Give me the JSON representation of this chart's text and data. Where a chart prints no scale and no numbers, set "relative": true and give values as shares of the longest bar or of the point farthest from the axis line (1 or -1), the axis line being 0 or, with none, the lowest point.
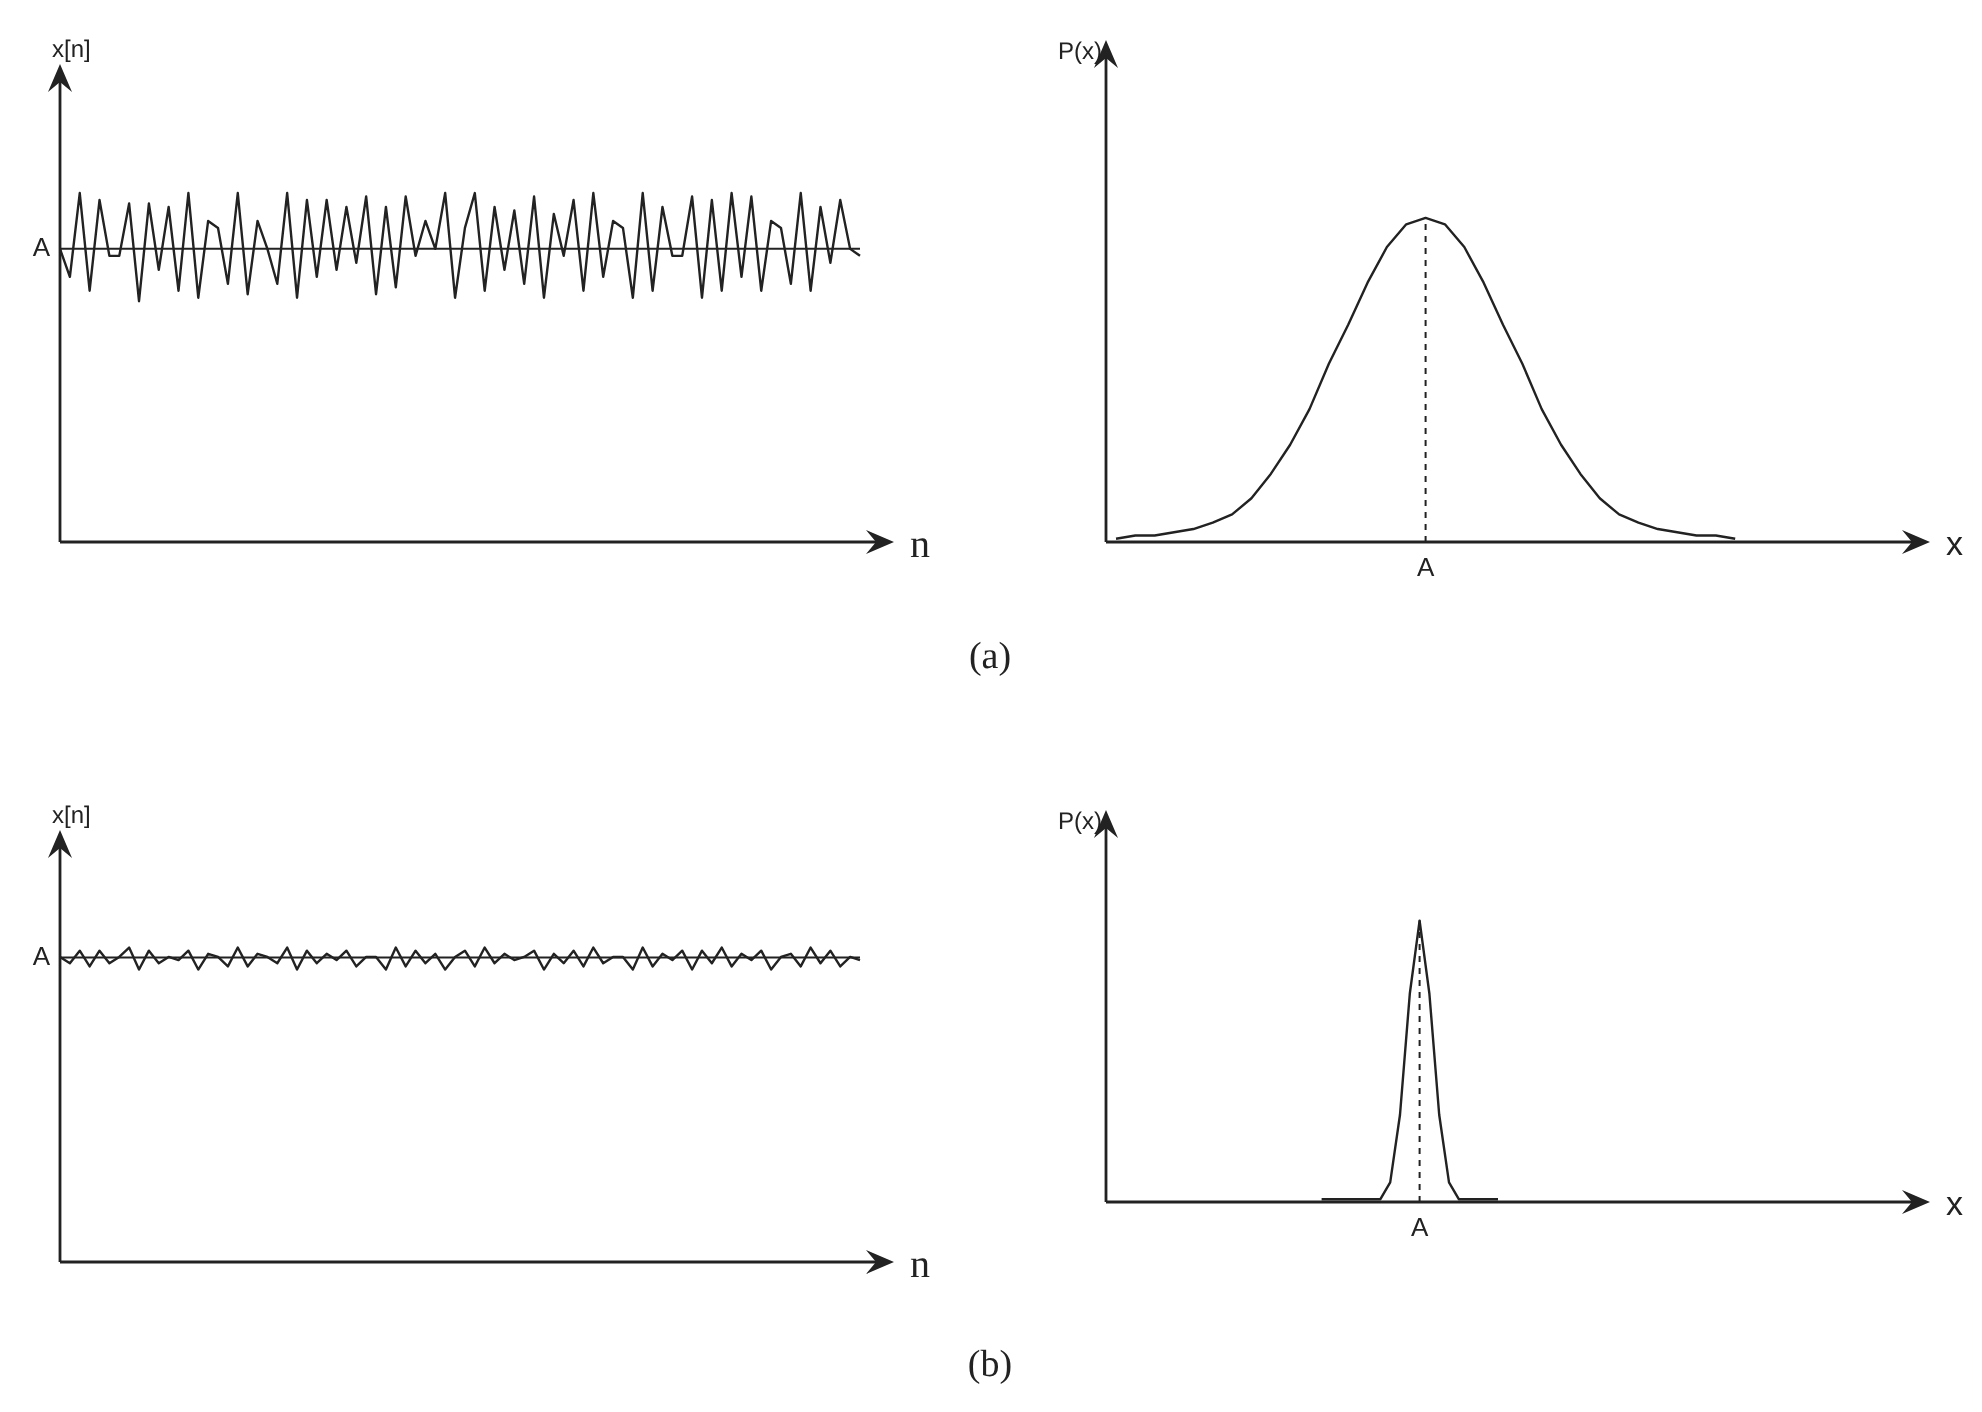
{
  "chart_data": [
    {
      "type": "line",
      "relative": true,
      "ylabel": "x[n]",
      "xlabel": "n",
      "marker": "none",
      "color": "#222222",
      "categories": [
        null,
        null,
        null,
        null,
        null,
        null,
        null,
        null,
        null,
        null,
        null,
        null,
        null,
        null,
        null,
        null,
        null,
        null,
        null,
        null,
        null,
        null,
        null,
        null,
        null,
        null,
        null,
        null,
        null,
        null,
        null,
        null,
        null,
        null,
        null,
        null,
        null,
        null,
        null,
        null,
        null,
        null,
        null,
        null,
        null,
        null,
        null,
        null,
        null,
        null,
        null,
        null,
        null,
        null,
        null,
        null,
        null,
        null,
        null,
        null,
        null,
        null,
        null,
        null,
        null,
        null,
        null,
        null,
        null,
        null,
        null,
        null,
        null,
        null,
        null,
        null,
        null,
        null,
        null,
        null,
        null,
        null
      ],
      "values": [
        0.84,
        0.76,
        1.0,
        0.72,
        0.98,
        0.82,
        0.82,
        0.97,
        0.69,
        0.97,
        0.78,
        0.96,
        0.72,
        1.0,
        0.7,
        0.92,
        0.9,
        0.74,
        1.0,
        0.71,
        0.92,
        0.84,
        0.74,
        1.0,
        0.7,
        0.98,
        0.76,
        0.98,
        0.78,
        0.96,
        0.8,
        0.99,
        0.71,
        0.96,
        0.73,
        0.99,
        0.82,
        0.92,
        0.84,
        1.0,
        0.7,
        0.9,
        1.0,
        0.72,
        0.96,
        0.78,
        0.95,
        0.74,
        0.99,
        0.7,
        0.94,
        0.82,
        0.98,
        0.72,
        1.0,
        0.76,
        0.92,
        0.9,
        0.7,
        1.0,
        0.72,
        0.96,
        0.82,
        0.82,
        0.99,
        0.7,
        0.98,
        0.72,
        1.0,
        0.76,
        0.99,
        0.72,
        0.92,
        0.9,
        0.74,
        1.0,
        0.72,
        0.96,
        0.8,
        0.98,
        0.84,
        0.82
      ],
      "ref_lines": [
        {
          "axis": "y",
          "value": 0.84,
          "label": "A"
        }
      ],
      "annotations": [
        "(a)"
      ]
    },
    {
      "type": "line",
      "relative": true,
      "ylabel": "P(x)",
      "xlabel": "x",
      "marker": "none",
      "color": "#222222",
      "categories": [
        null,
        null,
        null,
        null,
        null,
        null,
        null,
        null,
        null,
        null,
        null,
        null,
        null,
        null,
        null,
        null,
        null,
        null,
        null,
        null,
        null,
        null,
        null,
        null,
        null,
        null,
        null,
        null,
        null,
        null,
        null,
        null,
        null,
        null,
        null,
        null,
        null,
        null,
        null,
        null,
        null
      ],
      "values": [
        0.01,
        0.02,
        0.02,
        0.03,
        0.04,
        0.06,
        0.085,
        0.135,
        0.21,
        0.3,
        0.41,
        0.55,
        0.67,
        0.8,
        0.91,
        0.98,
        1.0,
        0.98,
        0.91,
        0.8,
        0.67,
        0.55,
        0.41,
        0.3,
        0.21,
        0.135,
        0.085,
        0.06,
        0.04,
        0.03,
        0.02,
        0.02,
        0.01,
        null,
        null,
        null,
        null,
        null,
        null,
        null,
        null
      ],
      "annotations": [
        "A"
      ]
    },
    {
      "type": "line",
      "relative": true,
      "ylabel": "x[n]",
      "xlabel": "n",
      "marker": "none",
      "color": "#222222",
      "categories": [
        null,
        null,
        null,
        null,
        null,
        null,
        null,
        null,
        null,
        null,
        null,
        null,
        null,
        null,
        null,
        null,
        null,
        null,
        null,
        null,
        null,
        null,
        null,
        null,
        null,
        null,
        null,
        null,
        null,
        null,
        null,
        null,
        null,
        null,
        null,
        null,
        null,
        null,
        null,
        null,
        null,
        null,
        null,
        null,
        null,
        null,
        null,
        null,
        null,
        null,
        null,
        null,
        null,
        null,
        null,
        null,
        null,
        null,
        null,
        null,
        null,
        null,
        null,
        null,
        null,
        null,
        null,
        null,
        null,
        null,
        null,
        null,
        null,
        null,
        null,
        null,
        null,
        null,
        null,
        null,
        null,
        null
      ],
      "values": [
        0.97,
        0.95,
        0.99,
        0.94,
        0.99,
        0.95,
        0.97,
        1.0,
        0.93,
        0.99,
        0.95,
        0.97,
        0.96,
        0.99,
        0.93,
        0.98,
        0.97,
        0.94,
        1.0,
        0.94,
        0.98,
        0.97,
        0.95,
        1.0,
        0.93,
        0.99,
        0.95,
        0.98,
        0.96,
        0.99,
        0.94,
        0.97,
        0.97,
        0.93,
        1.0,
        0.94,
        0.99,
        0.95,
        0.98,
        0.93,
        0.97,
        0.99,
        0.94,
        1.0,
        0.95,
        0.98,
        0.96,
        0.97,
        0.99,
        0.93,
        0.98,
        0.95,
        0.99,
        0.94,
        1.0,
        0.95,
        0.97,
        0.97,
        0.93,
        1.0,
        0.94,
        0.98,
        0.96,
        0.99,
        0.93,
        0.99,
        0.95,
        1.0,
        0.94,
        0.98,
        0.96,
        0.99,
        0.93,
        0.97,
        0.98,
        0.94,
        1.0,
        0.95,
        0.99,
        0.94,
        0.97,
        0.96
      ],
      "ref_lines": [
        {
          "axis": "y",
          "value": 0.968,
          "label": "A"
        }
      ],
      "annotations": [
        "(b)"
      ]
    },
    {
      "type": "line",
      "relative": true,
      "ylabel": "P(x)",
      "xlabel": "x",
      "marker": "none",
      "color": "#222222",
      "categories": [
        null,
        null,
        null,
        null,
        null,
        null,
        null,
        null,
        null,
        null,
        null,
        null,
        null,
        null,
        null,
        null,
        null,
        null,
        null,
        null,
        null,
        null,
        null,
        null,
        null,
        null,
        null,
        null,
        null,
        null,
        null,
        null,
        null,
        null,
        null,
        null,
        null,
        null,
        null,
        null,
        null,
        null,
        null,
        null,
        null,
        null,
        null,
        null,
        null,
        null,
        null,
        null,
        null,
        null,
        null,
        null,
        null,
        null,
        null,
        null,
        null,
        null,
        null,
        null,
        null,
        null,
        null,
        null,
        null,
        null,
        null,
        null,
        null,
        null,
        null,
        null,
        null,
        null,
        null,
        null,
        null
      ],
      "values": [
        null,
        null,
        null,
        null,
        null,
        null,
        null,
        null,
        null,
        null,
        null,
        null,
        null,
        null,
        null,
        null,
        null,
        null,
        null,
        null,
        null,
        null,
        0.01,
        0.01,
        0.01,
        0.01,
        0.01,
        0.01,
        0.01,
        0.07,
        0.31,
        0.74,
        1.0,
        0.74,
        0.31,
        0.07,
        0.01,
        0.01,
        0.01,
        0.01,
        0.01,
        null,
        null,
        null,
        null,
        null,
        null,
        null,
        null,
        null,
        null,
        null,
        null,
        null,
        null,
        null,
        null,
        null,
        null,
        null,
        null,
        null,
        null,
        null,
        null,
        null,
        null,
        null,
        null,
        null,
        null,
        null,
        null,
        null,
        null,
        null,
        null,
        null,
        null,
        null,
        null
      ],
      "annotations": [
        "A"
      ]
    }
  ]
}
